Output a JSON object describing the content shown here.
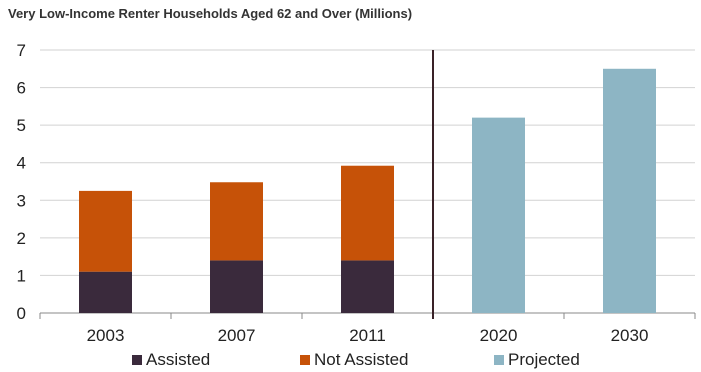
{
  "chart_data": {
    "type": "bar",
    "title": "Very Low-Income Renter Households Aged 62 and Over (Millions)",
    "xlabel": "",
    "ylabel": "",
    "categories": [
      "2003",
      "2007",
      "2011",
      "2020",
      "2030"
    ],
    "ylim": [
      0,
      7
    ],
    "yticks": [
      "0",
      "1",
      "2",
      "3",
      "4",
      "5",
      "6",
      "7"
    ],
    "stacked": true,
    "grid": true,
    "legend_position": "bottom",
    "series": [
      {
        "name": "Assisted",
        "color": "#3a2a3c",
        "values": [
          1.1,
          1.4,
          1.4,
          null,
          null
        ]
      },
      {
        "name": "Not Assisted",
        "color": "#c65208",
        "values": [
          2.15,
          2.08,
          2.52,
          null,
          null
        ]
      },
      {
        "name": "Projected",
        "color": "#8db5c4",
        "values": [
          null,
          null,
          null,
          5.2,
          6.5
        ]
      }
    ],
    "divider_after_category": "2011"
  }
}
